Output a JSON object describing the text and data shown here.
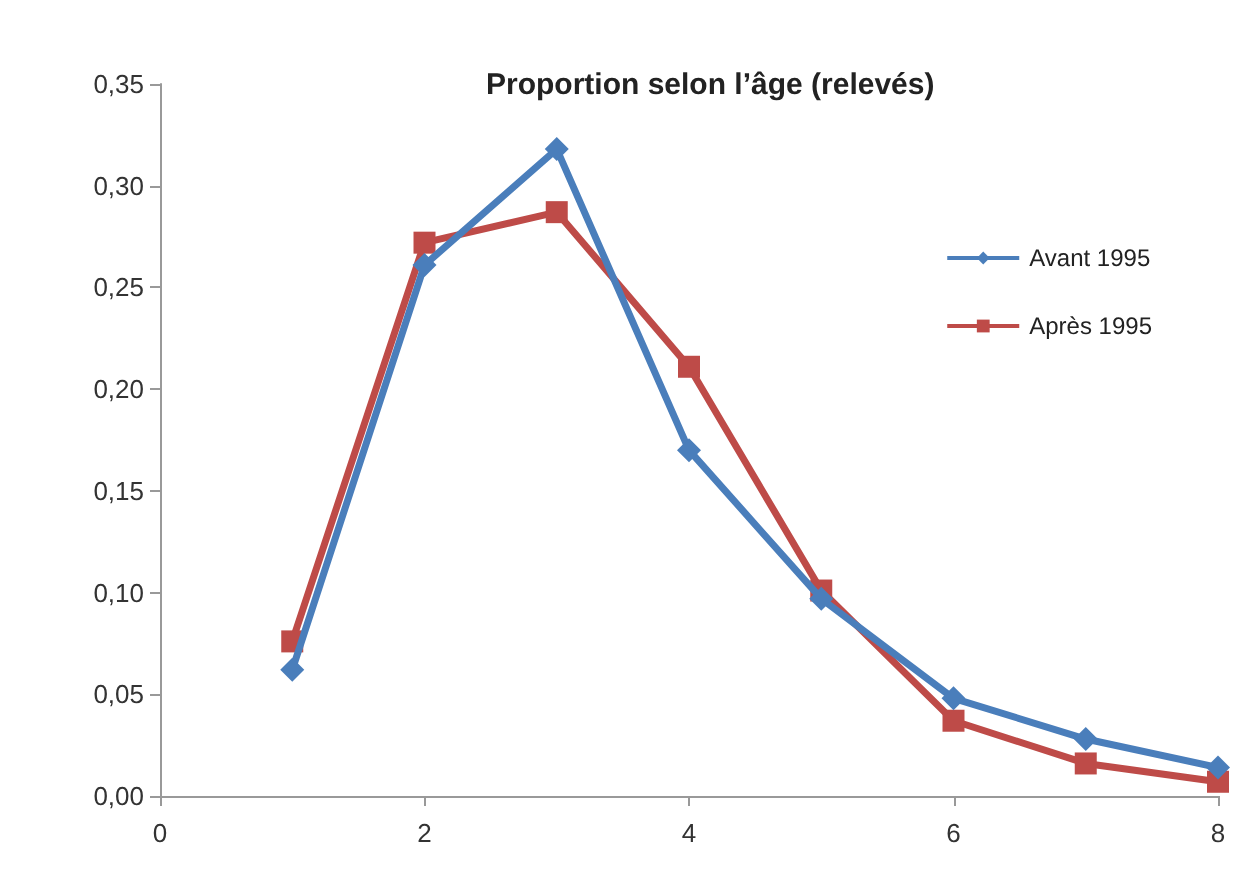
{
  "chart_data": {
    "type": "line",
    "title": "Proportion selon l’âge (relevés)",
    "x": [
      1,
      2,
      3,
      4,
      5,
      6,
      7,
      8
    ],
    "series": [
      {
        "name": "Avant 1995",
        "color": "#4a7ebb",
        "marker": "diamond",
        "values": [
          0.062,
          0.261,
          0.318,
          0.17,
          0.097,
          0.048,
          0.028,
          0.014
        ]
      },
      {
        "name": "Après 1995",
        "color": "#be4b48",
        "marker": "square",
        "values": [
          0.076,
          0.272,
          0.287,
          0.211,
          0.101,
          0.037,
          0.016,
          0.007
        ]
      }
    ],
    "xlim": [
      0,
      8
    ],
    "xticks": [
      0,
      2,
      4,
      6,
      8
    ],
    "ylim": [
      0,
      0.35
    ],
    "yticks": [
      {
        "value": 0,
        "label": "0,00"
      },
      {
        "value": 0.05,
        "label": "0,05"
      },
      {
        "value": 0.1,
        "label": "0,10"
      },
      {
        "value": 0.15,
        "label": "0,15"
      },
      {
        "value": 0.2,
        "label": "0,20"
      },
      {
        "value": 0.25,
        "label": "0,25"
      },
      {
        "value": 0.3,
        "label": "0,30"
      },
      {
        "value": 0.35,
        "label": "0,35"
      }
    ],
    "legend": "top right",
    "line_style": "solid"
  }
}
